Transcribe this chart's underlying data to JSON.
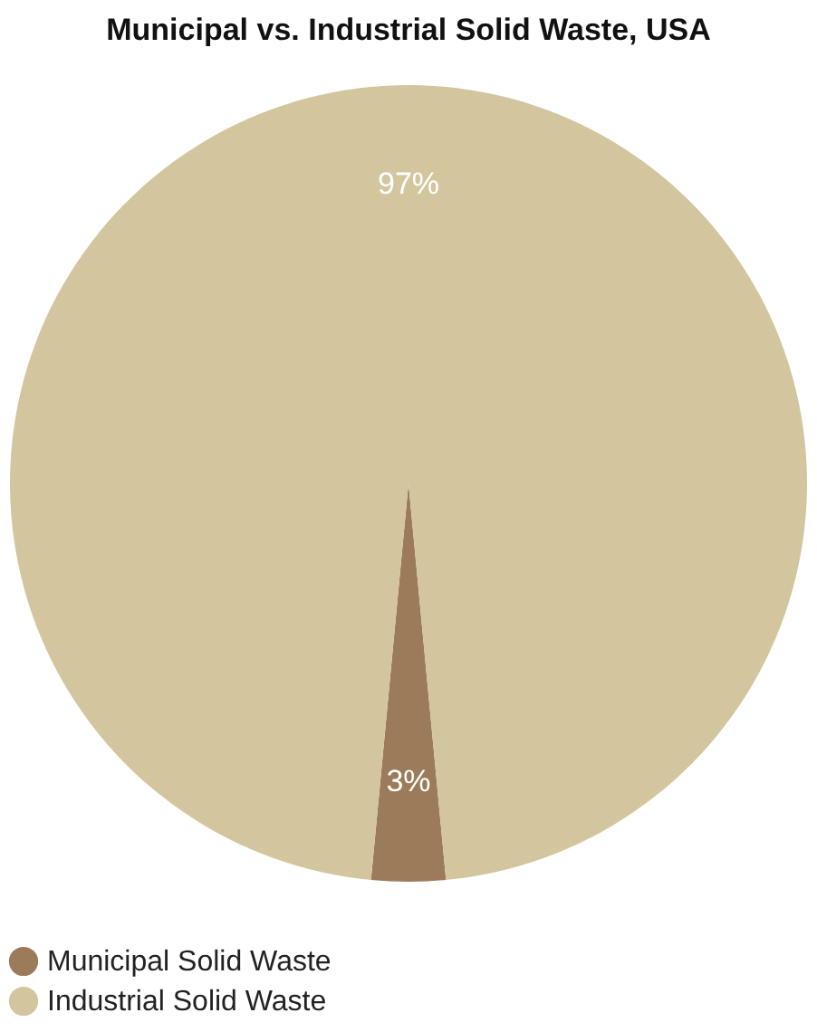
{
  "chart_data": {
    "type": "pie",
    "title": "Municipal vs. Industrial Solid Waste, USA",
    "categories": [
      "Municipal Solid Waste",
      "Industrial Solid Waste"
    ],
    "values": [
      3,
      97
    ],
    "colors": [
      "#9c7b5a",
      "#d3c69e"
    ],
    "value_labels": [
      "3%",
      "97%"
    ],
    "legend": "bottom"
  }
}
